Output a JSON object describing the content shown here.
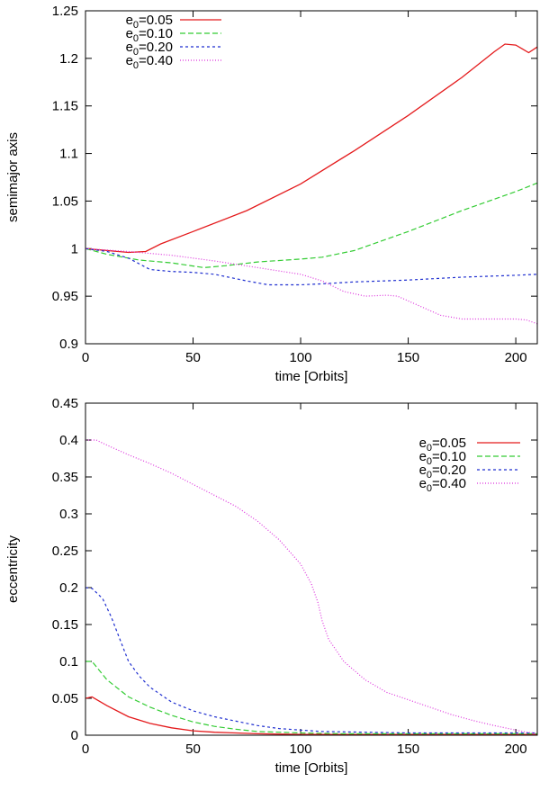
{
  "chart_data": [
    {
      "type": "line",
      "xlabel": "time [Orbits]",
      "ylabel": "semimajor axis",
      "xlim": [
        0,
        210
      ],
      "ylim": [
        0.9,
        1.25
      ],
      "xticks": [
        "0",
        "50",
        "100",
        "150",
        "200"
      ],
      "xtick_values": [
        0,
        50,
        100,
        150,
        200
      ],
      "yticks": [
        "0.9",
        "0.95",
        "1",
        "1.05",
        "1.1",
        "1.15",
        "1.2",
        "1.25"
      ],
      "ytick_values": [
        0.9,
        0.95,
        1.0,
        1.05,
        1.1,
        1.15,
        1.2,
        1.25
      ],
      "legend_position": "top-left",
      "series": [
        {
          "name": "e0=0.05",
          "legend_base": "e",
          "legend_sub": "0",
          "legend_rest": "=0.05",
          "color": "#e41a1c",
          "dash": "solid",
          "x": [
            0,
            10,
            20,
            28,
            35,
            50,
            75,
            100,
            125,
            150,
            175,
            190,
            195,
            200,
            203,
            206,
            210
          ],
          "y": [
            1.0,
            0.998,
            0.996,
            0.997,
            1.005,
            1.018,
            1.04,
            1.068,
            1.103,
            1.14,
            1.18,
            1.207,
            1.215,
            1.214,
            1.21,
            1.206,
            1.212
          ]
        },
        {
          "name": "e0=0.10",
          "legend_base": "e",
          "legend_sub": "0",
          "legend_rest": "=0.10",
          "color": "#33cc33",
          "dash": "6,3",
          "x": [
            0,
            10,
            25,
            40,
            55,
            65,
            80,
            100,
            110,
            125,
            150,
            175,
            200,
            210
          ],
          "y": [
            1.0,
            0.994,
            0.988,
            0.985,
            0.98,
            0.982,
            0.986,
            0.989,
            0.991,
            0.998,
            1.018,
            1.04,
            1.06,
            1.069
          ]
        },
        {
          "name": "e0=0.20",
          "legend_base": "e",
          "legend_sub": "0",
          "legend_rest": "=0.20",
          "color": "#1f2fd0",
          "dash": "3,3",
          "x": [
            0,
            10,
            20,
            30,
            40,
            50,
            60,
            75,
            85,
            100,
            110,
            125,
            150,
            175,
            200,
            210
          ],
          "y": [
            1.0,
            0.997,
            0.99,
            0.978,
            0.976,
            0.975,
            0.973,
            0.966,
            0.962,
            0.962,
            0.963,
            0.965,
            0.967,
            0.97,
            0.972,
            0.973
          ]
        },
        {
          "name": "e0=0.40",
          "legend_base": "e",
          "legend_sub": "0",
          "legend_rest": "=0.40",
          "color": "#dd33dd",
          "dash": "1,2",
          "x": [
            0,
            20,
            40,
            60,
            80,
            100,
            110,
            120,
            130,
            140,
            145,
            155,
            165,
            175,
            185,
            200,
            205,
            210
          ],
          "y": [
            1.0,
            0.997,
            0.993,
            0.987,
            0.98,
            0.973,
            0.966,
            0.955,
            0.95,
            0.951,
            0.95,
            0.94,
            0.93,
            0.926,
            0.926,
            0.926,
            0.925,
            0.921
          ]
        }
      ]
    },
    {
      "type": "line",
      "xlabel": "time [Orbits]",
      "ylabel": "eccentricity",
      "xlim": [
        0,
        210
      ],
      "ylim": [
        0,
        0.45
      ],
      "xticks": [
        "0",
        "50",
        "100",
        "150",
        "200"
      ],
      "xtick_values": [
        0,
        50,
        100,
        150,
        200
      ],
      "yticks": [
        "0",
        "0.05",
        "0.1",
        "0.15",
        "0.2",
        "0.25",
        "0.3",
        "0.35",
        "0.4",
        "0.45"
      ],
      "ytick_values": [
        0,
        0.05,
        0.1,
        0.15,
        0.2,
        0.25,
        0.3,
        0.35,
        0.4,
        0.45
      ],
      "legend_position": "top-right",
      "series": [
        {
          "name": "e0=0.05",
          "legend_base": "e",
          "legend_sub": "0",
          "legend_rest": "=0.05",
          "color": "#e41a1c",
          "dash": "solid",
          "x": [
            0,
            3,
            10,
            20,
            30,
            40,
            50,
            60,
            70,
            80,
            100,
            150,
            210
          ],
          "y": [
            0.05,
            0.052,
            0.04,
            0.025,
            0.016,
            0.01,
            0.006,
            0.004,
            0.003,
            0.002,
            0.001,
            0.001,
            0.001
          ]
        },
        {
          "name": "e0=0.10",
          "legend_base": "e",
          "legend_sub": "0",
          "legend_rest": "=0.10",
          "color": "#33cc33",
          "dash": "6,3",
          "x": [
            0,
            3,
            10,
            20,
            30,
            40,
            50,
            60,
            70,
            80,
            90,
            100,
            120,
            150,
            210
          ],
          "y": [
            0.1,
            0.1,
            0.075,
            0.052,
            0.038,
            0.027,
            0.018,
            0.012,
            0.008,
            0.005,
            0.004,
            0.003,
            0.002,
            0.002,
            0.002
          ]
        },
        {
          "name": "e0=0.20",
          "legend_base": "e",
          "legend_sub": "0",
          "legend_rest": "=0.20",
          "color": "#1f2fd0",
          "dash": "3,3",
          "x": [
            0,
            3,
            8,
            12,
            16,
            20,
            25,
            30,
            40,
            50,
            60,
            70,
            80,
            90,
            100,
            110,
            130,
            150,
            175,
            210
          ],
          "y": [
            0.2,
            0.199,
            0.185,
            0.16,
            0.13,
            0.1,
            0.08,
            0.065,
            0.045,
            0.033,
            0.025,
            0.019,
            0.013,
            0.009,
            0.007,
            0.005,
            0.004,
            0.003,
            0.003,
            0.003
          ]
        },
        {
          "name": "e0=0.40",
          "legend_base": "e",
          "legend_sub": "0",
          "legend_rest": "=0.40",
          "color": "#dd33dd",
          "dash": "1,2",
          "x": [
            0,
            5,
            10,
            20,
            30,
            40,
            50,
            60,
            70,
            80,
            90,
            100,
            105,
            108,
            110,
            113,
            117,
            120,
            130,
            140,
            150,
            160,
            170,
            180,
            190,
            200,
            205,
            210
          ],
          "y": [
            0.4,
            0.4,
            0.393,
            0.38,
            0.368,
            0.355,
            0.34,
            0.325,
            0.31,
            0.29,
            0.265,
            0.232,
            0.205,
            0.18,
            0.155,
            0.13,
            0.113,
            0.1,
            0.075,
            0.058,
            0.048,
            0.038,
            0.028,
            0.02,
            0.013,
            0.007,
            0.004,
            0.002
          ]
        }
      ]
    }
  ]
}
